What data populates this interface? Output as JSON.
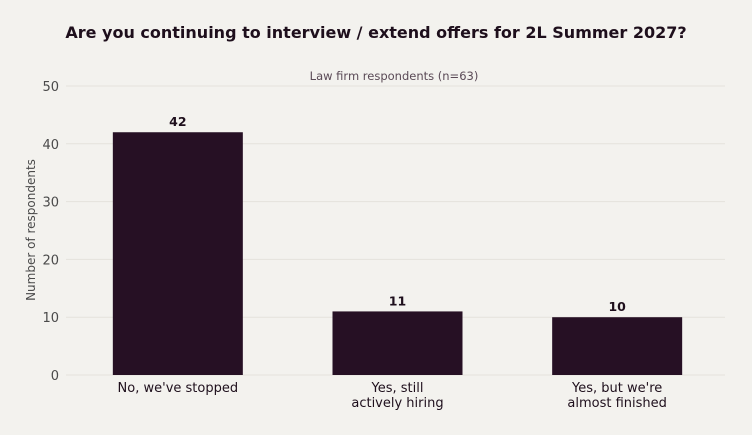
{
  "chart_data": {
    "type": "bar",
    "title": "Are you continuing to interview / extend offers for 2L Summer 2027?",
    "subtitle": "Law firm respondents (n=63)",
    "ylabel": "Number of respondents",
    "xlabel": "",
    "categories": [
      [
        "No, we've stopped"
      ],
      [
        "Yes, still",
        "actively hiring"
      ],
      [
        "Yes, but we're",
        "almost finished"
      ]
    ],
    "values": [
      42,
      11,
      10
    ],
    "ylim": [
      0,
      50
    ],
    "yticks": [
      0,
      10,
      20,
      30,
      40,
      50
    ],
    "grid": true,
    "legend": "none",
    "bar_color": "#261024",
    "text_color": "#1e0f1c",
    "tick_color": "#4a4a4a",
    "grid_color": "#e4e2dc",
    "background": "#f3f2ee"
  }
}
